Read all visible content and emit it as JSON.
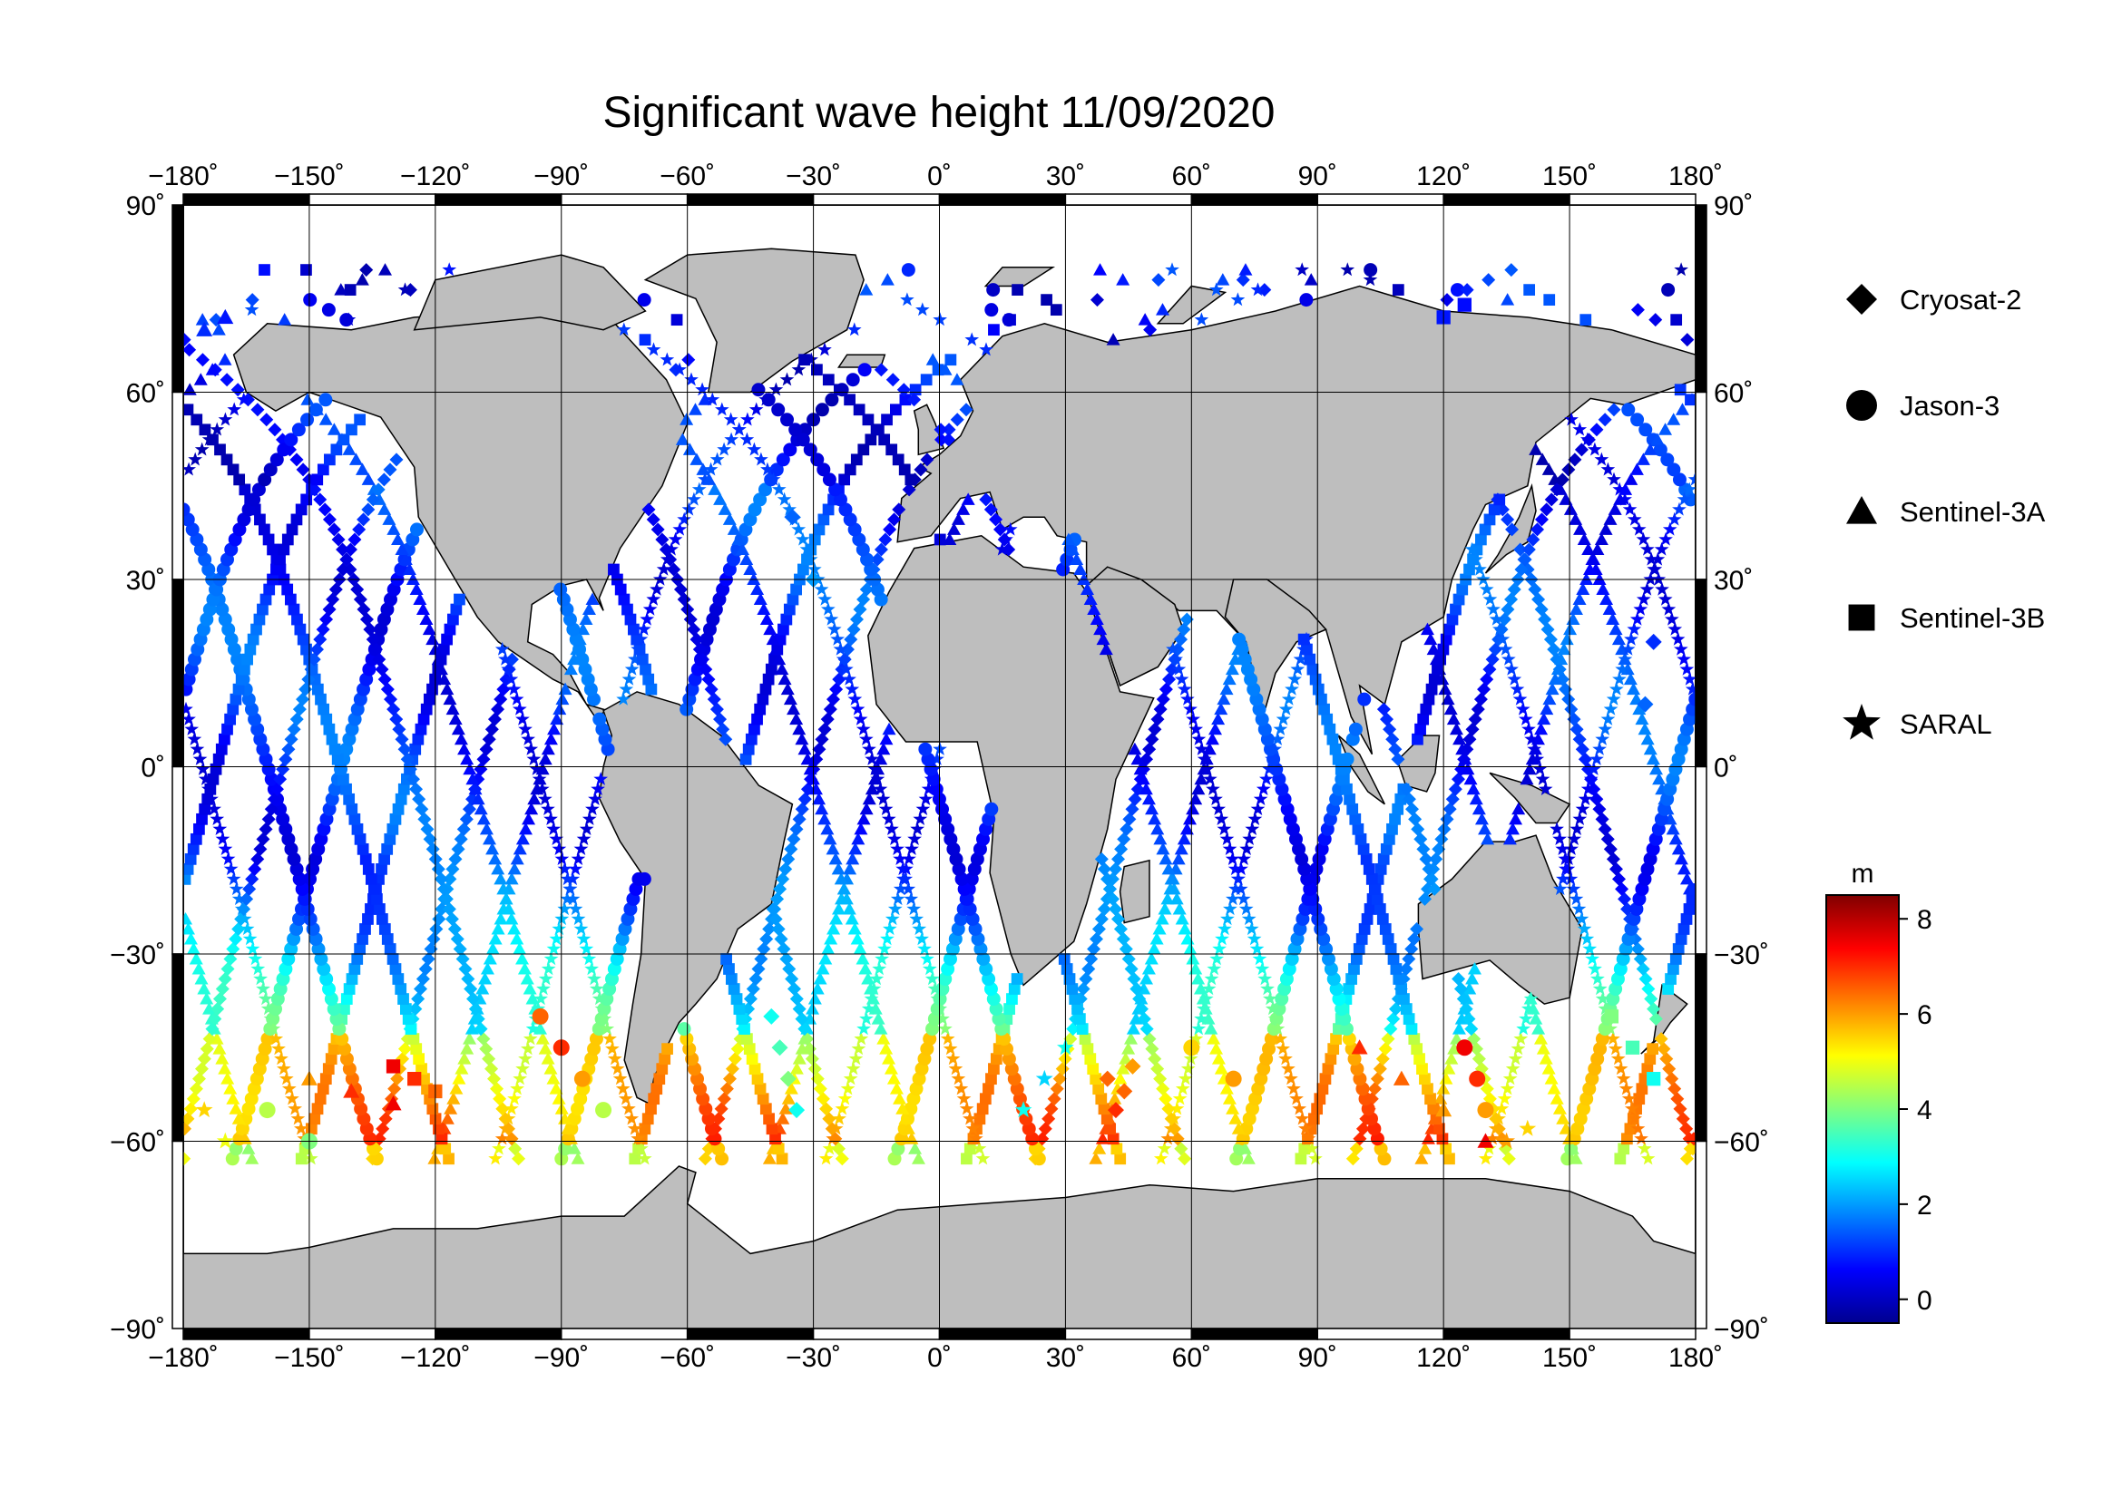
{
  "title": "Significant wave height 11/09/2020",
  "axes": {
    "x_ticks": [
      "−180˚",
      "−150˚",
      "−120˚",
      "−90˚",
      "−60˚",
      "−30˚",
      "0˚",
      "30˚",
      "60˚",
      "90˚",
      "120˚",
      "150˚",
      "180˚"
    ],
    "x_values": [
      -180,
      -150,
      -120,
      -90,
      -60,
      -30,
      0,
      30,
      60,
      90,
      120,
      150,
      180
    ],
    "y_ticks_left": [
      "90˚",
      "60˚",
      "30˚",
      "0˚",
      "−30˚",
      "−60˚",
      "−90˚"
    ],
    "y_ticks_right": [
      "90˚",
      "60˚",
      "30˚",
      "0˚",
      "−30˚",
      "−60˚",
      "−90˚"
    ],
    "y_values": [
      90,
      60,
      30,
      0,
      -30,
      -60,
      -90
    ]
  },
  "legend": [
    {
      "name": "Cryosat-2",
      "symbol": "diamond"
    },
    {
      "name": "Jason-3",
      "symbol": "circle"
    },
    {
      "name": "Sentinel-3A",
      "symbol": "triangle"
    },
    {
      "name": "Sentinel-3B",
      "symbol": "square"
    },
    {
      "name": "SARAL",
      "symbol": "star"
    }
  ],
  "colorbar": {
    "unit": "m",
    "ticks": [
      "8",
      "6",
      "4",
      "2",
      "0"
    ],
    "tick_values": [
      8,
      6,
      4,
      2,
      0
    ],
    "range": [
      -0.5,
      8.5
    ],
    "colormap": [
      "#00008f",
      "#0000ff",
      "#0080ff",
      "#00ffff",
      "#80ff80",
      "#ffff00",
      "#ff8000",
      "#ff0000",
      "#800000"
    ]
  },
  "colors": {
    "land": "#bebebe",
    "ocean": "#ffffff",
    "grid": "#000000"
  },
  "chart_data": {
    "type": "scatter",
    "title": "Significant wave height 11/09/2020",
    "xlabel": "",
    "ylabel": "",
    "xlim": [
      -180,
      180
    ],
    "ylim": [
      -90,
      90
    ],
    "grid": true,
    "legend_placement": "right",
    "value_unit": "m",
    "series": [
      {
        "name": "Cryosat-2",
        "symbol": "diamond",
        "lon": [
          -40,
          -38,
          -36,
          -34,
          40,
          42,
          44,
          46,
          -35,
          -30,
          170,
          168
        ],
        "lat": [
          -40,
          -45,
          -50,
          -55,
          -50,
          -55,
          -52,
          -48,
          40,
          30,
          20,
          10
        ],
        "swh": [
          3.0,
          3.5,
          4.0,
          3.0,
          6.5,
          7.0,
          6.5,
          6.0,
          1.5,
          2.0,
          1.0,
          1.5
        ]
      },
      {
        "name": "Jason-3",
        "symbol": "circle",
        "lon": [
          -95,
          -90,
          -85,
          -80,
          125,
          128,
          130,
          -160,
          -150,
          60,
          70
        ],
        "lat": [
          -40,
          -45,
          -50,
          -55,
          -45,
          -50,
          -55,
          -55,
          -60,
          -45,
          -50
        ],
        "swh": [
          6.5,
          7.0,
          6.0,
          4.5,
          7.5,
          7.0,
          6.0,
          4.5,
          4.0,
          5.5,
          6.0
        ]
      },
      {
        "name": "Sentinel-3A",
        "symbol": "triangle",
        "lon": [
          -150,
          -140,
          -130,
          100,
          110,
          120,
          130,
          -175,
          -170
        ],
        "lat": [
          -50,
          -52,
          -54,
          -45,
          -50,
          -55,
          -60,
          70,
          72
        ],
        "swh": [
          6.0,
          7.0,
          7.5,
          7.0,
          6.5,
          6.0,
          7.5,
          1.0,
          0.8
        ]
      },
      {
        "name": "Sentinel-3B",
        "symbol": "square",
        "lon": [
          -130,
          -125,
          -120,
          160,
          165,
          170,
          120,
          125
        ],
        "lat": [
          -48,
          -50,
          -52,
          -40,
          -45,
          -50,
          72,
          74
        ],
        "swh": [
          7.5,
          7.0,
          6.5,
          4.0,
          3.5,
          3.0,
          0.8,
          0.7
        ]
      },
      {
        "name": "SARAL",
        "symbol": "star",
        "lon": [
          -175,
          -170,
          20,
          25,
          30,
          135,
          140
        ],
        "lat": [
          -55,
          -60,
          -55,
          -50,
          -45,
          -60,
          -58
        ],
        "swh": [
          5.5,
          5.0,
          3.0,
          2.5,
          3.0,
          6.0,
          5.5
        ]
      }
    ]
  }
}
